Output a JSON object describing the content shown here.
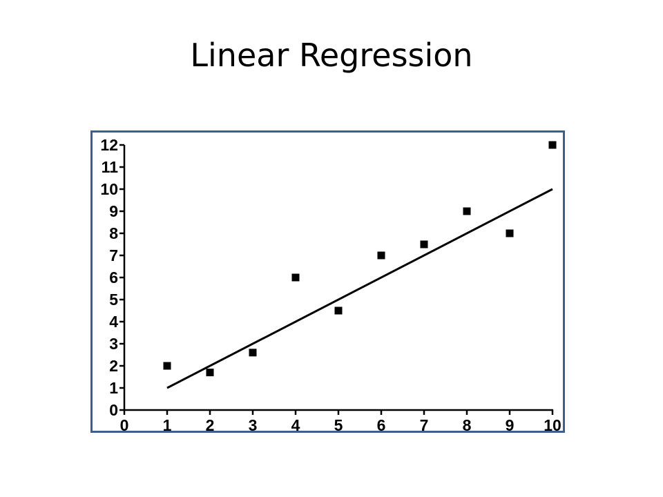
{
  "slide": {
    "title": "Linear Regression"
  },
  "chart_data": {
    "type": "scatter",
    "title": "",
    "xlabel": "",
    "ylabel": "",
    "xlim": [
      0,
      10
    ],
    "ylim": [
      0,
      12
    ],
    "x_ticks": [
      0,
      1,
      2,
      3,
      4,
      5,
      6,
      7,
      8,
      9,
      10
    ],
    "y_ticks": [
      0,
      1,
      2,
      3,
      4,
      5,
      6,
      7,
      8,
      9,
      10,
      11,
      12
    ],
    "grid": false,
    "frame_color": "#3d5f8c",
    "series": [
      {
        "marker": "square",
        "color": "#000000",
        "x": [
          1,
          2,
          3,
          4,
          5,
          6,
          7,
          8,
          9,
          10
        ],
        "y": [
          2,
          1.7,
          2.6,
          6,
          4.5,
          7,
          7.5,
          9,
          8,
          12
        ]
      }
    ],
    "regression_line": {
      "color": "#000000",
      "x": [
        1,
        10
      ],
      "y": [
        1,
        10
      ]
    }
  }
}
